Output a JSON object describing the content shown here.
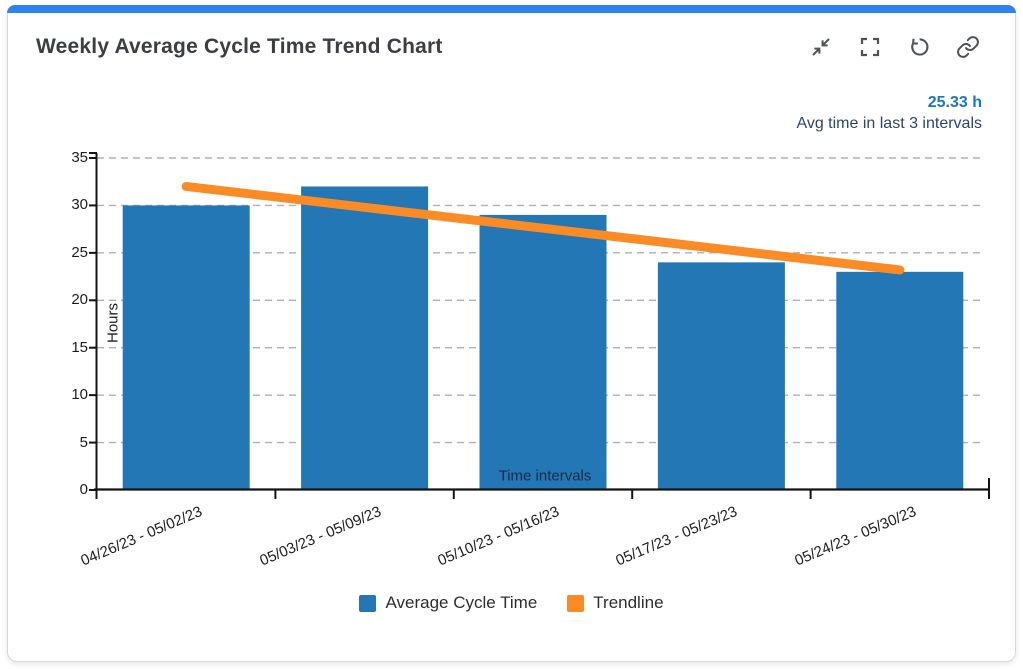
{
  "card": {
    "title": "Weekly Average Cycle Time Trend Chart",
    "accent_color": "#2f82f0"
  },
  "toolbar": {
    "icons": [
      "collapse-icon",
      "fullscreen-icon",
      "refresh-icon",
      "link-icon"
    ]
  },
  "stat": {
    "value": "25.33 h",
    "label": "Avg time in last 3 intervals"
  },
  "chart_data": {
    "type": "bar",
    "title": "Weekly Average Cycle Time Trend Chart",
    "categories": [
      "04/26/23 - 05/02/23",
      "05/03/23 - 05/09/23",
      "05/10/23 - 05/16/23",
      "05/17/23 - 05/23/23",
      "05/24/23 - 05/30/23"
    ],
    "series": [
      {
        "name": "Average Cycle Time",
        "type": "bar",
        "color": "#2277b4",
        "values": [
          30,
          32,
          29,
          24,
          23
        ]
      },
      {
        "name": "Trendline",
        "type": "line",
        "color": "#fb8b25",
        "values": [
          32.0,
          29.8,
          27.6,
          25.4,
          23.2
        ]
      }
    ],
    "xlabel": "Time intervals",
    "ylabel": "Hours",
    "ylim": [
      0,
      35
    ],
    "ytick_step": 5,
    "grid": "horizontal-dashed",
    "legend_position": "bottom"
  }
}
